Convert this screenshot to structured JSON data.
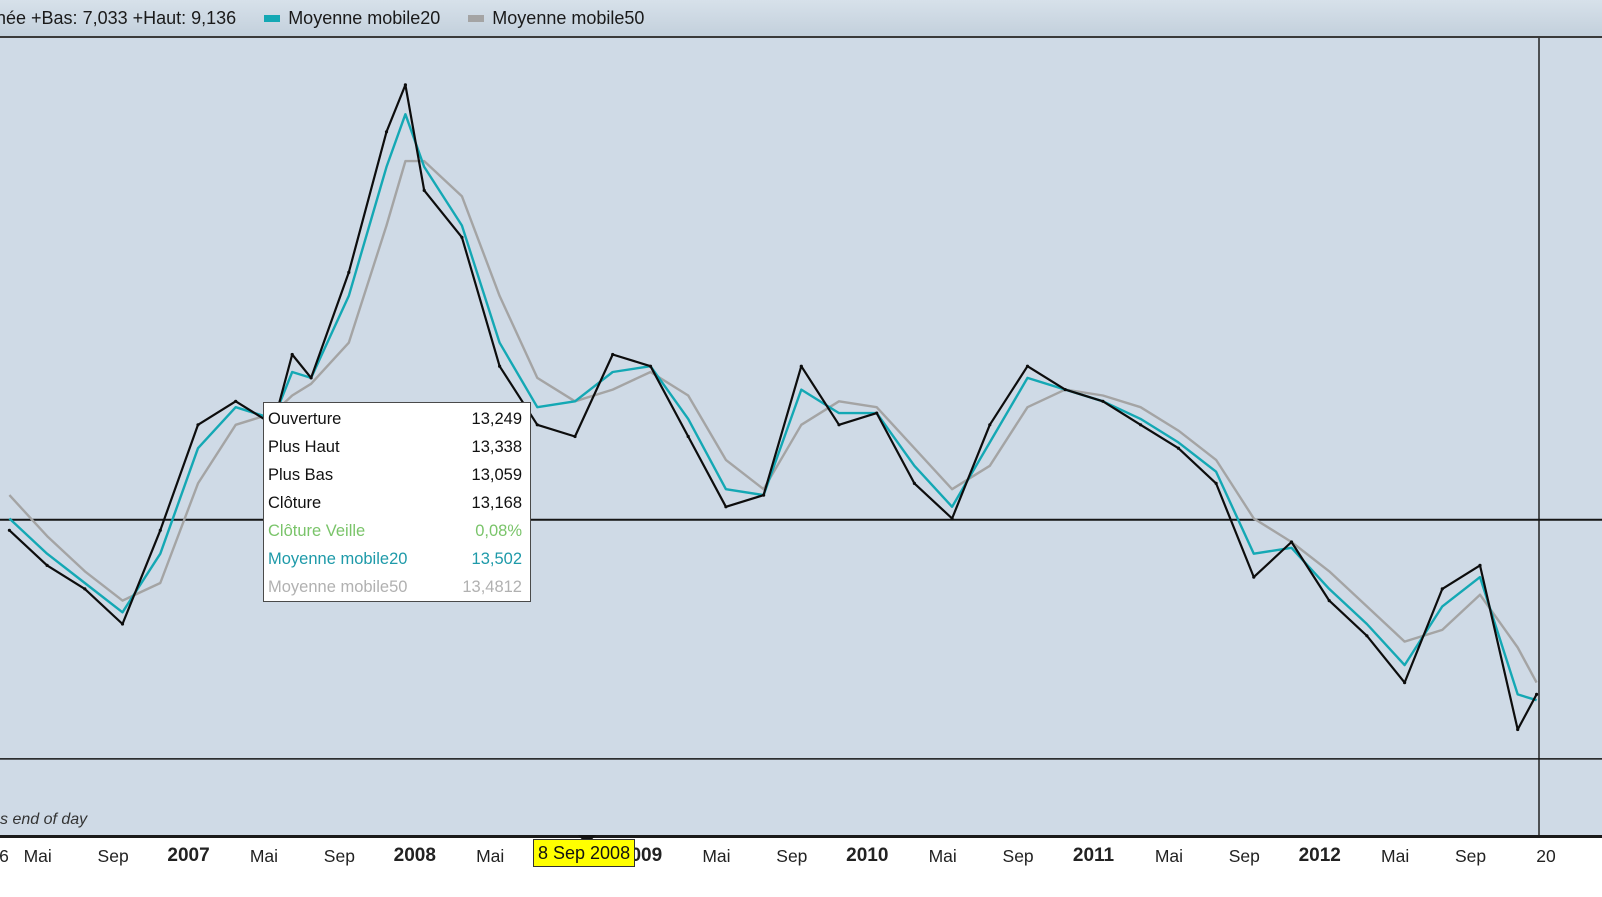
{
  "header": {
    "range_text": "née +Bas: 7,033 +Haut: 9,136",
    "legend": [
      {
        "label": "Moyenne mobile20",
        "color": "#14a8b4"
      },
      {
        "label": "Moyenne mobile50",
        "color": "#a4a4a4"
      }
    ]
  },
  "tooltip": {
    "rows": [
      {
        "label": "Ouverture",
        "value": "13,249",
        "style": "black"
      },
      {
        "label": "Plus Haut",
        "value": "13,338",
        "style": "black"
      },
      {
        "label": "Plus Bas",
        "value": "13,059",
        "style": "black"
      },
      {
        "label": "Clôture",
        "value": "13,168",
        "style": "black"
      },
      {
        "label": "Clôture Veille",
        "value": "0,08%",
        "style": "green"
      },
      {
        "label": "Moyenne mobile20",
        "value": "13,502",
        "style": "teal"
      },
      {
        "label": "Moyenne mobile50",
        "value": "13,4812",
        "style": "gray"
      }
    ]
  },
  "source_note": "s end of day",
  "cursor_date": "8 Sep 2008",
  "colors": {
    "price": "#0d0d0d",
    "ma20": "#14a8b4",
    "ma50": "#a4a4a4",
    "plot_bg": "#cfdae6",
    "reference_line": "#151515"
  },
  "chart_data": {
    "type": "line",
    "title": "",
    "grid": false,
    "x_start": "2006-03",
    "x_end": "2012-12",
    "x_labels": [
      "6",
      "Mai",
      "Sep",
      "2007",
      "Mai",
      "Sep",
      "2008",
      "Mai",
      "2009",
      "Mai",
      "Sep",
      "2010",
      "Mai",
      "Sep",
      "2011",
      "Mai",
      "Sep",
      "2012",
      "Mai",
      "Sep",
      "20"
    ],
    "series": [
      {
        "name": "",
        "key": "price",
        "points": [
          [
            "2006-03",
            12.4
          ],
          [
            "2006-05",
            12.1
          ],
          [
            "2006-07",
            11.9
          ],
          [
            "2006-09",
            11.6
          ],
          [
            "2006-11",
            12.4
          ],
          [
            "2007-01",
            13.3
          ],
          [
            "2007-03",
            13.5
          ],
          [
            "2007-05",
            13.3
          ],
          [
            "2007-06",
            13.9
          ],
          [
            "2007-07",
            13.7
          ],
          [
            "2007-09",
            14.6
          ],
          [
            "2007-11",
            15.8
          ],
          [
            "2007-12",
            16.2
          ],
          [
            "2008-01",
            15.3
          ],
          [
            "2008-03",
            14.9
          ],
          [
            "2008-05",
            13.8
          ],
          [
            "2008-07",
            13.3
          ],
          [
            "2008-09",
            13.2
          ],
          [
            "2008-11",
            13.9
          ],
          [
            "2009-01",
            13.8
          ],
          [
            "2009-03",
            13.2
          ],
          [
            "2009-05",
            12.6
          ],
          [
            "2009-07",
            12.7
          ],
          [
            "2009-09",
            13.8
          ],
          [
            "2009-11",
            13.3
          ],
          [
            "2010-01",
            13.4
          ],
          [
            "2010-03",
            12.8
          ],
          [
            "2010-05",
            12.5
          ],
          [
            "2010-07",
            13.3
          ],
          [
            "2010-09",
            13.8
          ],
          [
            "2010-11",
            13.6
          ],
          [
            "2011-01",
            13.5
          ],
          [
            "2011-03",
            13.3
          ],
          [
            "2011-05",
            13.1
          ],
          [
            "2011-07",
            12.8
          ],
          [
            "2011-09",
            12.0
          ],
          [
            "2011-11",
            12.3
          ],
          [
            "2012-01",
            11.8
          ],
          [
            "2012-03",
            11.5
          ],
          [
            "2012-05",
            11.1
          ],
          [
            "2012-07",
            11.9
          ],
          [
            "2012-09",
            12.1
          ],
          [
            "2012-11",
            10.7
          ],
          [
            "2012-12",
            11.0
          ]
        ]
      },
      {
        "name": "Moyenne mobile20",
        "key": "ma20",
        "points": [
          [
            "2006-03",
            12.5
          ],
          [
            "2006-05",
            12.2
          ],
          [
            "2006-07",
            11.95
          ],
          [
            "2006-09",
            11.7
          ],
          [
            "2006-11",
            12.2
          ],
          [
            "2007-01",
            13.1
          ],
          [
            "2007-03",
            13.45
          ],
          [
            "2007-05",
            13.35
          ],
          [
            "2007-06",
            13.75
          ],
          [
            "2007-07",
            13.7
          ],
          [
            "2007-09",
            14.4
          ],
          [
            "2007-11",
            15.5
          ],
          [
            "2007-12",
            15.95
          ],
          [
            "2008-01",
            15.5
          ],
          [
            "2008-03",
            15.0
          ],
          [
            "2008-05",
            14.0
          ],
          [
            "2008-07",
            13.45
          ],
          [
            "2008-09",
            13.5
          ],
          [
            "2008-11",
            13.75
          ],
          [
            "2009-01",
            13.8
          ],
          [
            "2009-03",
            13.35
          ],
          [
            "2009-05",
            12.75
          ],
          [
            "2009-07",
            12.7
          ],
          [
            "2009-09",
            13.6
          ],
          [
            "2009-11",
            13.4
          ],
          [
            "2010-01",
            13.4
          ],
          [
            "2010-03",
            12.95
          ],
          [
            "2010-05",
            12.6
          ],
          [
            "2010-07",
            13.15
          ],
          [
            "2010-09",
            13.7
          ],
          [
            "2010-11",
            13.6
          ],
          [
            "2011-01",
            13.5
          ],
          [
            "2011-03",
            13.35
          ],
          [
            "2011-05",
            13.15
          ],
          [
            "2011-07",
            12.9
          ],
          [
            "2011-09",
            12.2
          ],
          [
            "2011-11",
            12.25
          ],
          [
            "2012-01",
            11.9
          ],
          [
            "2012-03",
            11.6
          ],
          [
            "2012-05",
            11.25
          ],
          [
            "2012-07",
            11.75
          ],
          [
            "2012-09",
            12.0
          ],
          [
            "2012-11",
            11.0
          ],
          [
            "2012-12",
            10.95
          ]
        ]
      },
      {
        "name": "Moyenne mobile50",
        "key": "ma50",
        "points": [
          [
            "2006-03",
            12.7
          ],
          [
            "2006-05",
            12.35
          ],
          [
            "2006-07",
            12.05
          ],
          [
            "2006-09",
            11.8
          ],
          [
            "2006-11",
            11.95
          ],
          [
            "2007-01",
            12.8
          ],
          [
            "2007-03",
            13.3
          ],
          [
            "2007-05",
            13.4
          ],
          [
            "2007-06",
            13.55
          ],
          [
            "2007-07",
            13.65
          ],
          [
            "2007-09",
            14.0
          ],
          [
            "2007-11",
            15.0
          ],
          [
            "2007-12",
            15.55
          ],
          [
            "2008-01",
            15.55
          ],
          [
            "2008-03",
            15.25
          ],
          [
            "2008-05",
            14.4
          ],
          [
            "2008-07",
            13.7
          ],
          [
            "2008-09",
            13.5
          ],
          [
            "2008-11",
            13.6
          ],
          [
            "2009-01",
            13.75
          ],
          [
            "2009-03",
            13.55
          ],
          [
            "2009-05",
            13.0
          ],
          [
            "2009-07",
            12.75
          ],
          [
            "2009-09",
            13.3
          ],
          [
            "2009-11",
            13.5
          ],
          [
            "2010-01",
            13.45
          ],
          [
            "2010-03",
            13.1
          ],
          [
            "2010-05",
            12.75
          ],
          [
            "2010-07",
            12.95
          ],
          [
            "2010-09",
            13.45
          ],
          [
            "2010-11",
            13.6
          ],
          [
            "2011-01",
            13.55
          ],
          [
            "2011-03",
            13.45
          ],
          [
            "2011-05",
            13.25
          ],
          [
            "2011-07",
            13.0
          ],
          [
            "2011-09",
            12.5
          ],
          [
            "2011-11",
            12.3
          ],
          [
            "2012-01",
            12.05
          ],
          [
            "2012-03",
            11.75
          ],
          [
            "2012-05",
            11.45
          ],
          [
            "2012-07",
            11.55
          ],
          [
            "2012-09",
            11.85
          ],
          [
            "2012-11",
            11.4
          ],
          [
            "2012-12",
            11.1
          ]
        ]
      }
    ],
    "reference_lines": [
      12.49,
      10.45
    ]
  }
}
